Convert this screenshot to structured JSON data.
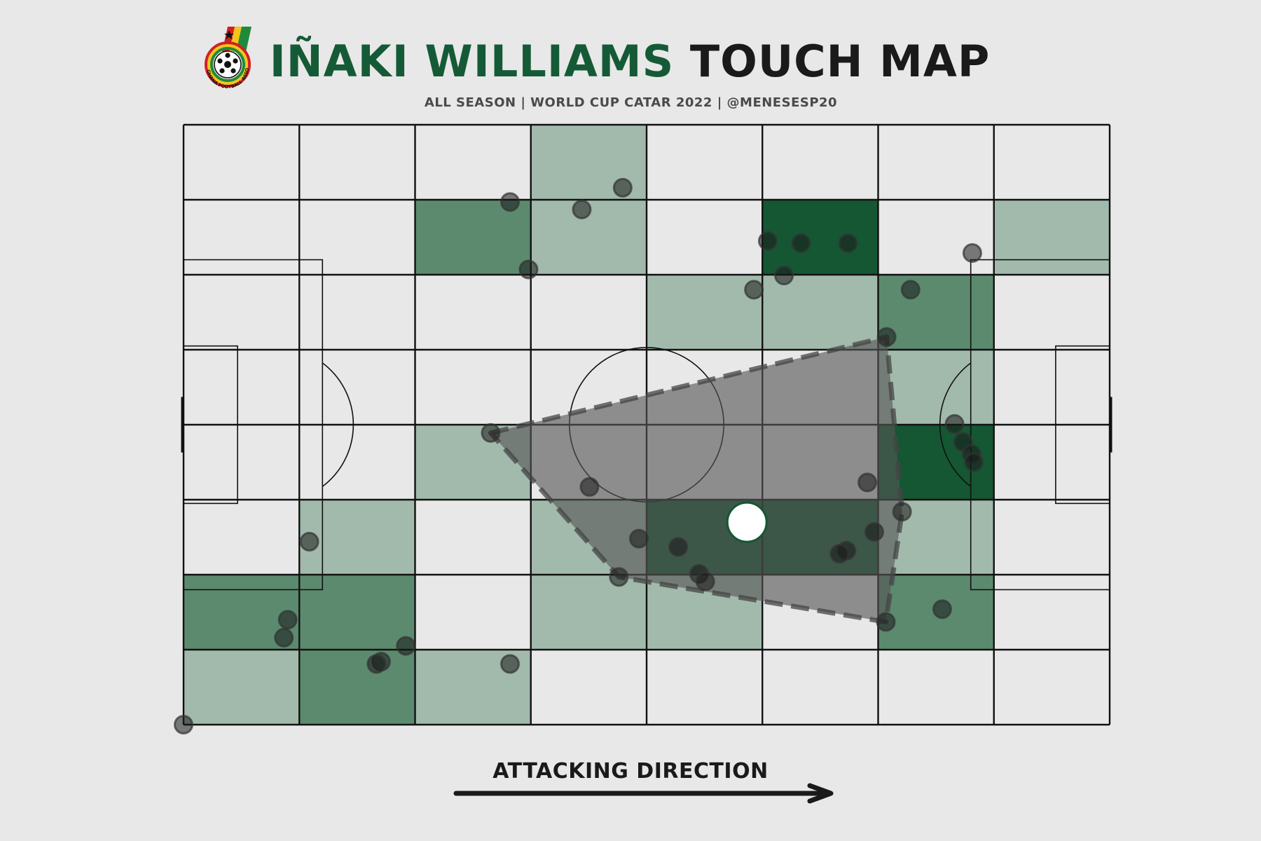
{
  "header": {
    "player": "IÑAKI WILLIAMS",
    "title_rest": " TOUCH MAP",
    "subtitle": "ALL SEASON | WORLD CUP CATAR 2022 | @MENESESP20"
  },
  "logo": {
    "name": "ghana-fa-logo",
    "text": "GHANA FOOTBALL ASSOCIATION"
  },
  "footer": {
    "direction_label": "ATTACKING DIRECTION"
  },
  "colors": {
    "background": "#e8e8e8",
    "lines": "#111111",
    "bin_light": "#a2baac",
    "bin_mid": "#5c8a6f",
    "bin_dark": "#145732",
    "hull": "#555555",
    "touch": "#1a1a1a",
    "average_position": "#ffffff"
  },
  "chart_data": {
    "type": "heatmap",
    "pitch": {
      "length": 120,
      "width": 80,
      "bins_x": 8,
      "bins_y": 8
    },
    "bin_counts": [
      [
        0,
        0,
        0,
        1,
        0,
        0,
        0,
        0
      ],
      [
        0,
        0,
        2,
        1,
        0,
        3,
        0,
        1
      ],
      [
        0,
        0,
        0,
        0,
        1,
        1,
        2,
        0
      ],
      [
        0,
        0,
        0,
        0,
        0,
        0,
        1,
        0
      ],
      [
        0,
        0,
        1,
        0,
        0,
        0,
        3,
        0
      ],
      [
        0,
        1,
        0,
        1,
        3,
        3,
        1,
        0
      ],
      [
        2,
        2,
        0,
        1,
        1,
        0,
        2,
        0
      ],
      [
        1,
        2,
        1,
        0,
        0,
        0,
        0,
        0
      ]
    ],
    "touches": [
      {
        "x": 42.3,
        "y": 10.3
      },
      {
        "x": 51.6,
        "y": 11.3
      },
      {
        "x": 56.9,
        "y": 8.4
      },
      {
        "x": 44.7,
        "y": 19.3
      },
      {
        "x": 75.7,
        "y": 15.5
      },
      {
        "x": 80.0,
        "y": 15.8
      },
      {
        "x": 86.1,
        "y": 15.8
      },
      {
        "x": 102.2,
        "y": 17.1
      },
      {
        "x": 73.9,
        "y": 22.0
      },
      {
        "x": 77.8,
        "y": 20.1
      },
      {
        "x": 94.2,
        "y": 22.0
      },
      {
        "x": 91.1,
        "y": 28.3
      },
      {
        "x": 39.8,
        "y": 41.1
      },
      {
        "x": 99.9,
        "y": 39.9
      },
      {
        "x": 101.0,
        "y": 42.3
      },
      {
        "x": 102.1,
        "y": 43.9
      },
      {
        "x": 102.4,
        "y": 45.0
      },
      {
        "x": 52.6,
        "y": 48.3
      },
      {
        "x": 88.6,
        "y": 47.7
      },
      {
        "x": 93.1,
        "y": 51.6
      },
      {
        "x": 16.3,
        "y": 55.6
      },
      {
        "x": 59.0,
        "y": 55.2
      },
      {
        "x": 64.1,
        "y": 56.3
      },
      {
        "x": 89.5,
        "y": 54.3
      },
      {
        "x": 85.9,
        "y": 56.8
      },
      {
        "x": 85.0,
        "y": 57.2
      },
      {
        "x": 66.8,
        "y": 59.9
      },
      {
        "x": 67.6,
        "y": 60.9
      },
      {
        "x": 56.4,
        "y": 60.3
      },
      {
        "x": 13.5,
        "y": 66.0
      },
      {
        "x": 13.0,
        "y": 68.4
      },
      {
        "x": 28.8,
        "y": 69.5
      },
      {
        "x": 25.6,
        "y": 71.6
      },
      {
        "x": 25.0,
        "y": 71.9
      },
      {
        "x": 42.3,
        "y": 71.9
      },
      {
        "x": 91.0,
        "y": 66.3
      },
      {
        "x": 98.3,
        "y": 64.6
      },
      {
        "x": 0.0,
        "y": 80.0
      }
    ],
    "hull_vertices": [
      {
        "x": 39.8,
        "y": 41.1
      },
      {
        "x": 91.1,
        "y": 28.3
      },
      {
        "x": 93.1,
        "y": 51.6
      },
      {
        "x": 91.0,
        "y": 66.3
      },
      {
        "x": 56.4,
        "y": 60.3
      }
    ],
    "average_position": {
      "x": 73.0,
      "y": 53.0
    }
  }
}
